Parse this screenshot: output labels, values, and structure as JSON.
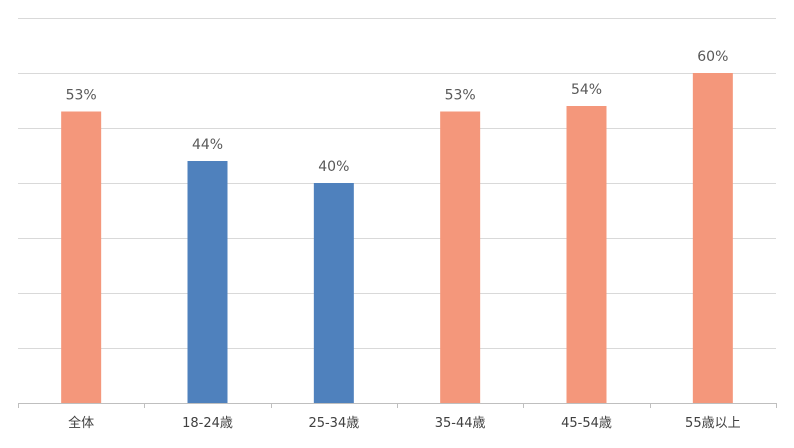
{
  "chart_data": {
    "type": "bar",
    "categories": [
      "全体",
      "18-24歳",
      "25-34歳",
      "35-44歳",
      "45-54歳",
      "55歳以上"
    ],
    "values": [
      53,
      44,
      40,
      53,
      54,
      60
    ],
    "data_labels": [
      "53%",
      "44%",
      "40%",
      "53%",
      "54%",
      "60%"
    ],
    "bar_colors": [
      "#f4977b",
      "#4f81bd",
      "#4f81bd",
      "#f4977b",
      "#f4977b",
      "#f4977b"
    ],
    "ylim": [
      0,
      70
    ],
    "y_gridlines": 7,
    "grid": true,
    "legend": "none",
    "title": "",
    "xlabel": "",
    "ylabel": ""
  }
}
